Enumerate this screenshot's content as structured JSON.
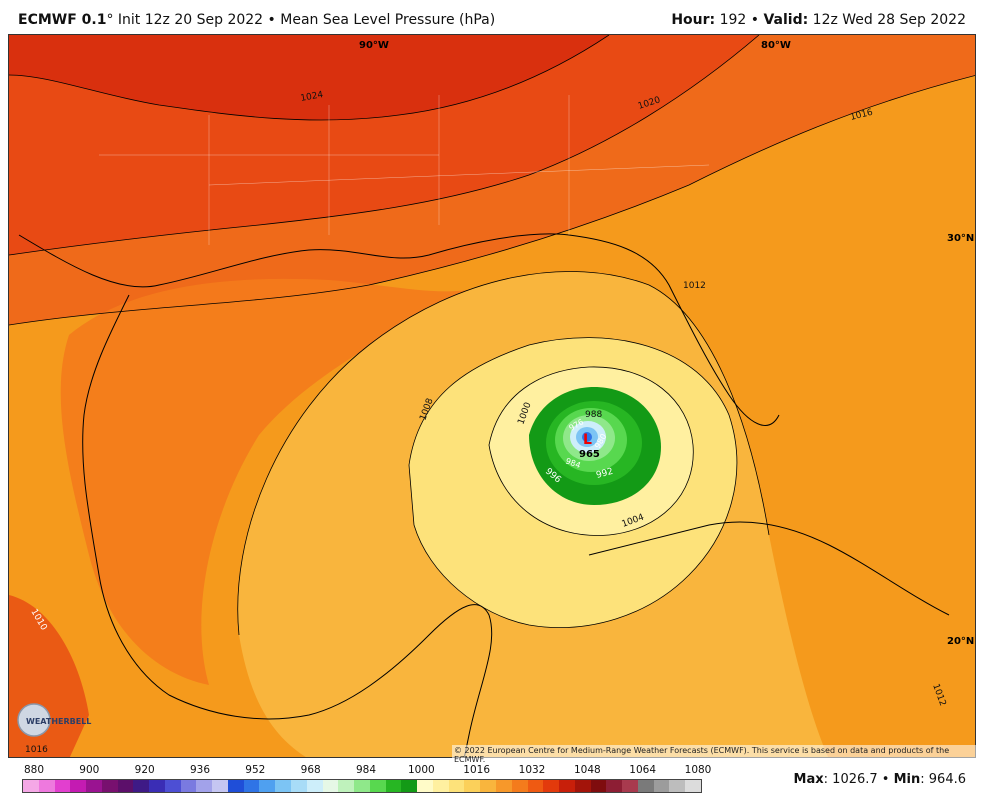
{
  "header": {
    "model": "ECMWF 0.1",
    "degree": "°",
    "init": "Init 12z 20 Sep 2022",
    "sep": "•",
    "field": "Mean Sea Level Pressure (hPa)",
    "hour_label": "Hour:",
    "hour_value": "192",
    "valid_label": "Valid:",
    "valid_value": "12z Wed 28 Sep 2022"
  },
  "map": {
    "lon_labels": [
      "90°W",
      "80°W"
    ],
    "lat_labels": [
      "30°N",
      "20°N"
    ],
    "contour_labels": [
      "1024",
      "1020",
      "1016",
      "1012",
      "1008",
      "1004",
      "1000",
      "996",
      "992",
      "988",
      "976",
      "980",
      "984",
      "965",
      "1012",
      "1016",
      "1010"
    ],
    "storm_center_value": "965",
    "copyright": "© 2022 European Centre for Medium-Range Weather Forecasts (ECMWF). This service is based on data and products of the ECMWF.",
    "logo_text": "WEATHERBELL"
  },
  "legend": {
    "tick_labels": [
      "880",
      "900",
      "920",
      "936",
      "952",
      "968",
      "984",
      "1000",
      "1016",
      "1032",
      "1048",
      "1064",
      "1080"
    ],
    "colors": [
      "#f5a8e6",
      "#ee79de",
      "#e23fcf",
      "#c41bb2",
      "#9a1391",
      "#78106f",
      "#5c0f6a",
      "#3e1a86",
      "#3a2db5",
      "#4d4fd4",
      "#7a7ae0",
      "#a2a2ea",
      "#c5c6f2",
      "#1f4ed8",
      "#2f74e6",
      "#4fa0f0",
      "#7cc4f4",
      "#a8dcf7",
      "#cdeefa",
      "#e6f8e6",
      "#bff2bc",
      "#8fe88a",
      "#58d84f",
      "#27b623",
      "#139a16",
      "#fffbc8",
      "#fff0a0",
      "#fde27a",
      "#fbd05a",
      "#f9b53d",
      "#f7982a",
      "#f47b1c",
      "#ef5a12",
      "#e33a0c",
      "#c81f0a",
      "#a3140a",
      "#7f0c0e",
      "#8d1e34",
      "#a83a4e",
      "#7a7a7a",
      "#9c9c9c",
      "#bdbdbd",
      "#dcdcdc"
    ]
  },
  "stats": {
    "max_label": "Max",
    "max_value": ": 1026.7",
    "sep": "•",
    "min_label": "Min",
    "min_value": ": 964.6"
  }
}
